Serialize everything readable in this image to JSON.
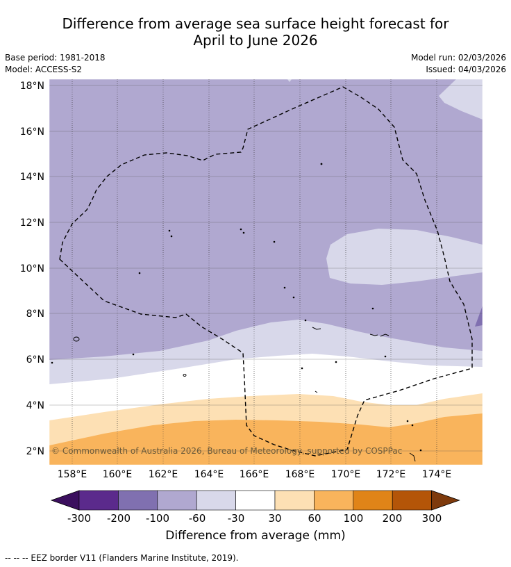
{
  "title": {
    "line1": "Difference from average sea surface height forecast for",
    "line2": "April to June 2026"
  },
  "meta": {
    "base_period": "Base period: 1981-2018",
    "model": "Model: ACCESS-S2",
    "model_run": "Model run: 02/03/2026",
    "issued": "Issued: 04/03/2026"
  },
  "map": {
    "copyright": "© Commonwealth of Australia 2026, Bureau of Meteorology, supported by COSPPac",
    "lat_labels": [
      "18°N",
      "16°N",
      "14°N",
      "12°N",
      "10°N",
      "8°N",
      "6°N",
      "4°N",
      "2°N"
    ],
    "lon_labels": [
      "158°E",
      "160°E",
      "162°E",
      "164°E",
      "166°E",
      "168°E",
      "170°E",
      "172°E",
      "174°E"
    ]
  },
  "colorbar": {
    "title": "Difference from average (mm)",
    "ticks": [
      "-300",
      "-200",
      "-100",
      "-60",
      "-30",
      "30",
      "60",
      "100",
      "200",
      "300"
    ],
    "colors": [
      "#3b0f5e",
      "#5b2a8c",
      "#8070b0",
      "#b0a8d0",
      "#d8d8ea",
      "#ffffff",
      "#fde0b4",
      "#f9b45c",
      "#e08418",
      "#b45508",
      "#7e3a0c"
    ]
  },
  "footnote": "--  --  -- EEZ border V11 (Flanders Marine Institute, 2019).",
  "colors": {
    "band_m60_m100": "#b0a8d0",
    "band_m30_m60": "#d8d8ea",
    "band_neutral": "#ffffff",
    "band_30_60": "#fde0b4",
    "band_60_100": "#f9b45c"
  }
}
